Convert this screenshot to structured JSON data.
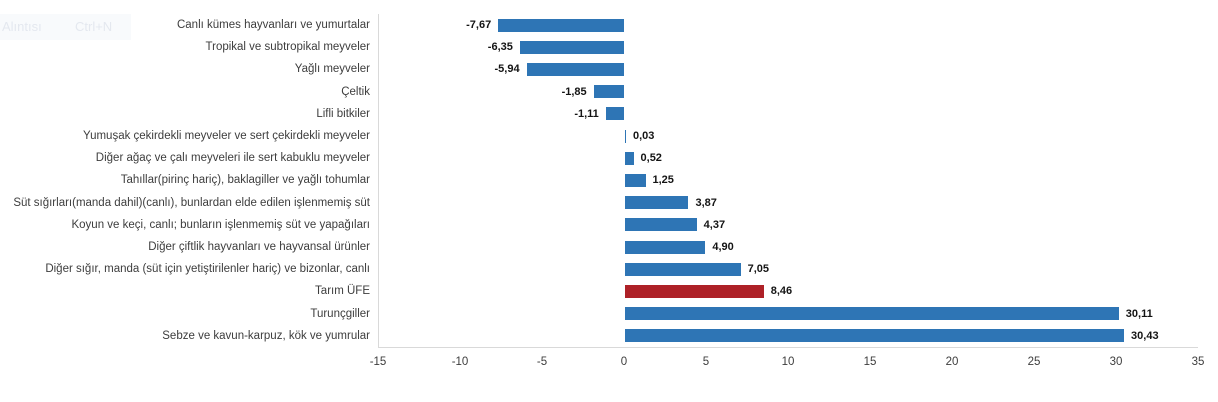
{
  "menu_remnant": {
    "item_label": "Alıntısı",
    "shortcut": "Ctrl+N"
  },
  "chart_data": {
    "type": "bar",
    "orientation": "horizontal",
    "title": "",
    "xlabel": "",
    "ylabel": "",
    "categories": [
      "Canlı kümes hayvanları ve yumurtalar",
      "Tropikal ve subtropikal meyveler",
      "Yağlı meyveler",
      "Çeltik",
      "Lifli bitkiler",
      "Yumuşak çekirdekli meyveler ve sert çekirdekli meyveler",
      "Diğer ağaç ve çalı meyveleri ile sert kabuklu meyveler",
      "Tahıllar(pirinç hariç), baklagiller ve yağlı tohumlar",
      "Süt sığırları(manda dahil)(canlı), bunlardan elde edilen işlenmemiş süt",
      "Koyun ve keçi, canlı; bunların işlenmemiş süt ve yapağıları",
      "Diğer çiftlik hayvanları ve hayvansal ürünler",
      "Diğer sığır, manda (süt için yetiştirilenler hariç) ve bizonlar, canlı",
      "Tarım ÜFE",
      "Turunçgiller",
      "Sebze ve kavun-karpuz, kök ve yumrular"
    ],
    "values": [
      -7.67,
      -6.35,
      -5.94,
      -1.85,
      -1.11,
      0.03,
      0.52,
      1.25,
      3.87,
      4.37,
      4.9,
      7.05,
      8.46,
      30.11,
      30.43
    ],
    "value_labels": [
      "-7,67",
      "-6,35",
      "-5,94",
      "-1,85",
      "-1,11",
      "0,03",
      "0,52",
      "1,25",
      "3,87",
      "4,37",
      "4,90",
      "7,05",
      "8,46",
      "30,11",
      "30,43"
    ],
    "highlight_category": "Tarım ÜFE",
    "highlight_index": 12,
    "bar_color": "#2E75B5",
    "highlight_color": "#AE2127",
    "axis_color": "#d9d9d9",
    "xlim": [
      -15,
      35
    ],
    "x_ticks": [
      -15,
      -10,
      -5,
      0,
      5,
      10,
      15,
      20,
      25,
      30,
      35
    ],
    "x_tick_labels": [
      "-15",
      "-10",
      "-5",
      "0",
      "5",
      "10",
      "15",
      "20",
      "25",
      "30",
      "35"
    ],
    "grid": false,
    "legend": false,
    "data_labels_position": "outside-end"
  }
}
